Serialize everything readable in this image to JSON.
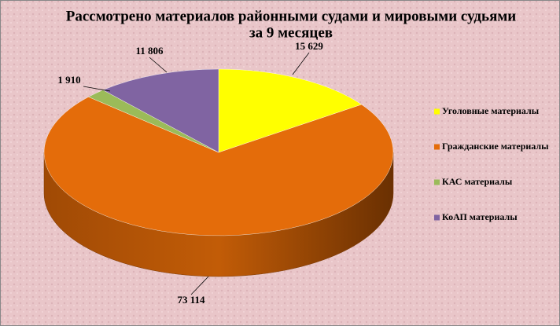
{
  "chart_data": {
    "type": "pie",
    "title": [
      "Рассмотрено материалов районными  судами и мировыми судьями",
      "за 9 месяцев"
    ],
    "categories": [
      "Уголовные  материалы",
      "Гражданские  материалы",
      "КАС материалы",
      "КоАП  материалы"
    ],
    "values": [
      15629,
      73114,
      1910,
      11806
    ],
    "value_labels": [
      "15 629",
      "73 114",
      "1 910",
      "11 806"
    ],
    "colors": [
      "#ffff00",
      "#e46c0a",
      "#9bbb59",
      "#8064a2"
    ]
  }
}
